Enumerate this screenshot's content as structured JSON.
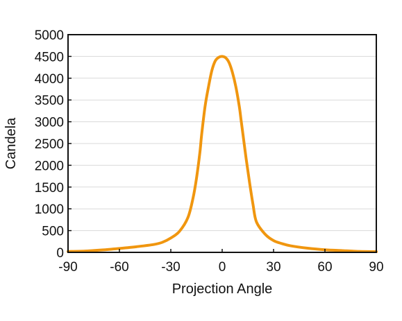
{
  "chart_data": {
    "type": "line",
    "title": "",
    "xlabel": "Projection Angle",
    "ylabel": "Candela",
    "xlim": [
      -90,
      90
    ],
    "ylim": [
      0,
      5000
    ],
    "xticks": [
      -90,
      -60,
      -30,
      0,
      30,
      60,
      90
    ],
    "yticks": [
      0,
      500,
      1000,
      1500,
      2000,
      2500,
      3000,
      3500,
      4000,
      4500,
      5000
    ],
    "grid": {
      "horizontal": true,
      "vertical": false
    },
    "legend": "none",
    "colors": {
      "line": "#f0960f",
      "axis": "#111111",
      "grid": "#d9d9d9"
    },
    "series": [
      {
        "x": [
          -90,
          -80,
          -70,
          -60,
          -50,
          -40,
          -35,
          -30,
          -25,
          -20,
          -17,
          -15,
          -13,
          -12,
          -10,
          -8,
          -6,
          -4,
          -2,
          0,
          2,
          4,
          6,
          8,
          10,
          11,
          12,
          14,
          16,
          18,
          20,
          25,
          30,
          35,
          40,
          50,
          60,
          70,
          80,
          90
        ],
        "y": [
          20,
          30,
          55,
          90,
          130,
          180,
          230,
          330,
          480,
          800,
          1250,
          1700,
          2300,
          2700,
          3350,
          3800,
          4180,
          4400,
          4480,
          4500,
          4470,
          4360,
          4130,
          3800,
          3350,
          3050,
          2750,
          2150,
          1600,
          1100,
          700,
          420,
          270,
          200,
          150,
          95,
          60,
          40,
          22,
          15
        ]
      }
    ]
  }
}
